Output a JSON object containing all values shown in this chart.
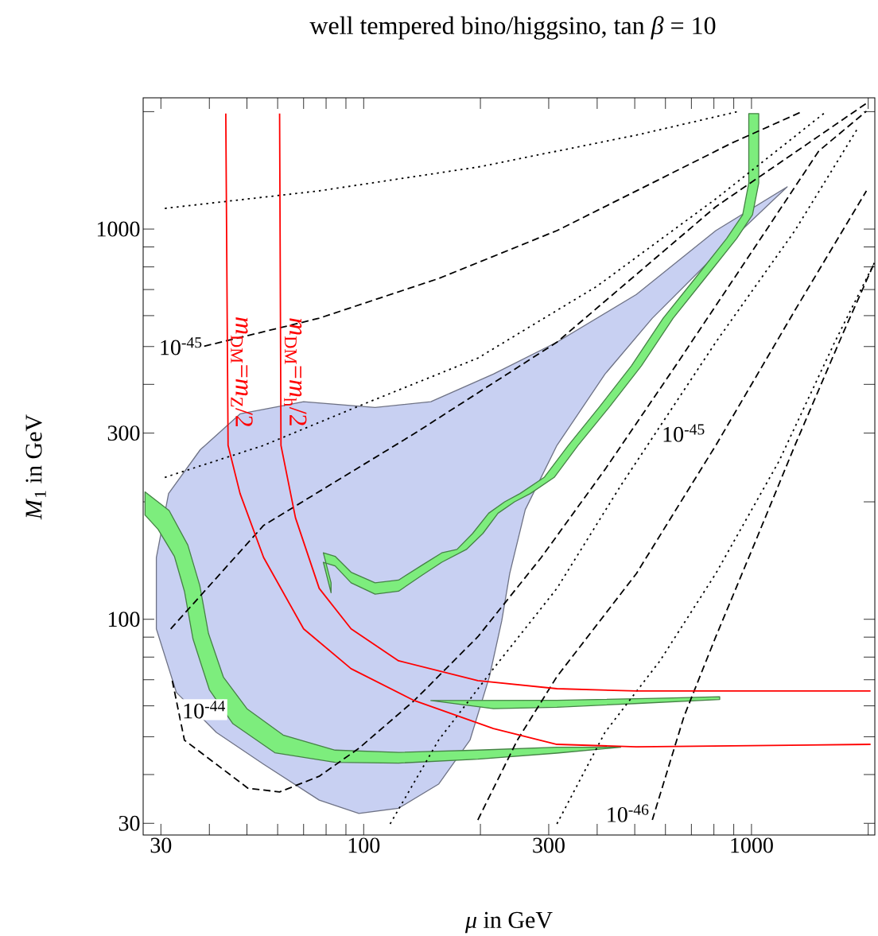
{
  "chart_data": {
    "type": "line",
    "title": "well tempered bino/higgsino, tan *β* = 10",
    "xlabel": "*μ* in GeV",
    "ylabel": "*M*$_{1}$ in GeV",
    "log": "xy",
    "xlim": [
      27,
      2080
    ],
    "ylim": [
      28,
      2170
    ],
    "xticks": [
      30,
      {
        "value": 40,
        "label": null
      },
      {
        "value": 50,
        "label": null
      },
      {
        "value": 60,
        "label": null
      },
      {
        "value": 70,
        "label": null
      },
      {
        "value": 80,
        "label": null
      },
      {
        "value": 90,
        "label": null
      },
      100,
      {
        "value": 200,
        "label": null
      },
      300,
      {
        "value": 400,
        "label": null
      },
      {
        "value": 500,
        "label": null
      },
      {
        "value": 600,
        "label": null
      },
      {
        "value": 700,
        "label": null
      },
      {
        "value": 800,
        "label": null
      },
      {
        "value": 900,
        "label": null
      },
      1000,
      {
        "value": 2000,
        "label": null
      }
    ],
    "yticks": [
      30,
      {
        "value": 40,
        "label": null
      },
      {
        "value": 50,
        "label": null
      },
      {
        "value": 60,
        "label": null
      },
      {
        "value": 70,
        "label": null
      },
      {
        "value": 80,
        "label": null
      },
      {
        "value": 90,
        "label": null
      },
      100,
      {
        "value": 200,
        "label": null
      },
      300,
      {
        "value": 400,
        "label": null
      },
      {
        "value": 500,
        "label": null
      },
      {
        "value": 600,
        "label": null
      },
      {
        "value": 700,
        "label": null
      },
      {
        "value": 800,
        "label": null
      },
      {
        "value": 900,
        "label": null
      },
      1000,
      {
        "value": 2000,
        "label": null
      }
    ],
    "series": [
      {
        "type": "area",
        "color": "#c8d0f2",
        "x": [
          1236,
          809,
          555,
          419,
          315,
          261,
          238,
          227,
          211,
          188,
          156,
          123,
          97.2,
          76.8,
          55.2,
          41.7,
          32.9,
          29.2,
          29.2,
          31.4,
          37.9,
          48.0,
          70.0,
          107,
          149,
          216,
          315,
          505,
          809
        ],
        "values": [
          1283,
          860,
          591,
          425,
          279,
          191,
          131,
          99.1,
          71.3,
          49.0,
          37.8,
          32.8,
          31.8,
          34.4,
          42.5,
          51.3,
          64.9,
          94.5,
          144,
          210,
          272,
          336,
          361,
          349,
          361,
          425,
          513,
          680,
          991
        ]
      },
      {
        "type": "area",
        "color": "#7ded7d",
        "x": [
          1044,
          1044,
          1006,
          916,
          758,
          628,
          520,
          432,
          357,
          310,
          269,
          245,
          222,
          203,
          184,
          159,
          142,
          123,
          107,
          92.8,
          84.4,
          78.7,
          82.4,
          82.4,
          78.7,
          84.4,
          92.8,
          107,
          123,
          142,
          159,
          174,
          191,
          210,
          231,
          253,
          292,
          337,
          407,
          490,
          592,
          715,
          863,
          949,
          984,
          984
        ],
        "values": [
          1977,
          1313,
          1088,
          946,
          747,
          591,
          446,
          352,
          279,
          231,
          210,
          200,
          187,
          166,
          151,
          140,
          130,
          118,
          116,
          124,
          137,
          140,
          117,
          124,
          148,
          145,
          132,
          124,
          126,
          138,
          148,
          151,
          166,
          187,
          200,
          210,
          231,
          279,
          352,
          446,
          591,
          747,
          946,
          1088,
          1313,
          1977
        ]
      },
      {
        "type": "area",
        "color": "#7ded7d",
        "x": [
          27.3,
          29.5,
          32.5,
          34.5,
          36.3,
          40,
          46,
          59,
          84.4,
          123,
          197,
          315,
          460,
          315,
          197,
          123,
          84.4,
          62,
          50,
          43.5,
          39.8,
          37.8,
          35.2,
          31.5,
          27.3
        ],
        "values": [
          185,
          170,
          145,
          118,
          89,
          66,
          54,
          45.5,
          43.0,
          42.8,
          43.8,
          45.4,
          47.0,
          47.0,
          46.2,
          45.6,
          46.2,
          50.5,
          59,
          71,
          92,
          122,
          155,
          190,
          212
        ]
      },
      {
        "type": "area",
        "color": "#7ded7d",
        "x": [
          828,
          600,
          315,
          149,
          216,
          315,
          500,
          828
        ],
        "values": [
          63.3,
          62.8,
          62.0,
          61.9,
          59.0,
          59.5,
          60.8,
          62.3
        ]
      },
      {
        "color": "#000000",
        "line_style": "dashed",
        "x": [
          38.8,
          76.8,
          156,
          315,
          555,
          889,
          1357
        ],
        "values": [
          501,
          591,
          747,
          991,
          1313,
          1661,
          2005
        ]
      },
      {
        "color": "#000000",
        "line_style": "dashed",
        "x": [
          31.8,
          55.2,
          135,
          315,
          809,
          1979
        ],
        "values": [
          94.5,
          174,
          299,
          513,
          1141,
          2100
        ]
      },
      {
        "color": "#000000",
        "line_style": "dashed",
        "x": [
          32.1,
          34.5,
          41.7,
          50.3,
          60.7,
          76.8,
          97.2,
          135,
          197,
          287,
          419,
          637,
          1023,
          1491,
          1979
        ],
        "values": [
          69.6,
          49.0,
          42.5,
          36.9,
          36.1,
          39.6,
          46.7,
          61.9,
          90.2,
          144,
          242,
          446,
          902,
          1585,
          2005
        ]
      },
      {
        "color": "#000000",
        "line_style": "dashed",
        "x": [
          197,
          249,
          315,
          505,
          809,
          1294,
          1979
        ],
        "values": [
          30.6,
          49.0,
          71.3,
          131,
          279,
          619,
          1253
        ]
      },
      {
        "color": "#000000",
        "line_style": "dashed",
        "x": [
          555,
          670,
          809,
          1023,
          1294,
          1718,
          2075
        ],
        "values": [
          30.6,
          56.4,
          90.2,
          158,
          279,
          538,
          820
        ]
      },
      {
        "color": "#000000",
        "line_style": "dotted",
        "x": [
          30.7,
          76.8,
          197,
          505,
          932
        ],
        "values": [
          1130,
          1253,
          1442,
          1741,
          2005
        ]
      },
      {
        "color": "#000000",
        "line_style": "dotted",
        "x": [
          30.7,
          55.2,
          97.2,
          197,
          399,
          809,
          1563
        ],
        "values": [
          231,
          279,
          352,
          467,
          713,
          1195,
          2005
        ]
      },
      {
        "color": "#000000",
        "line_style": "dotted",
        "x": [
          117,
          156,
          216,
          315,
          460,
          809,
          1294,
          1887
        ],
        "values": [
          29.9,
          49.0,
          74.7,
          120,
          220,
          513,
          991,
          1825
        ]
      },
      {
        "color": "#000000",
        "line_style": "dotted",
        "x": [
          315,
          419,
          581,
          809,
          1177,
          1639,
          2075
        ],
        "values": [
          29.9,
          51.3,
          78.3,
          131,
          254,
          513,
          820
        ]
      },
      {
        "color": "#ff0000",
        "line_style": "solid",
        "x": [
          44.1,
          44.7,
          48.0,
          55.2,
          70.0,
          92.8,
          135,
          216,
          315,
          505,
          2028
        ],
        "values": [
          1977,
          279,
          210,
          144,
          94.5,
          74.7,
          61.9,
          52.5,
          47.8,
          47.1,
          47.8
        ]
      },
      {
        "color": "#ff0000",
        "line_style": "solid",
        "x": [
          60.7,
          61.2,
          66.7,
          76.8,
          92.8,
          123,
          197,
          315,
          505,
          2028
        ],
        "values": [
          1977,
          279,
          182,
          120,
          94.5,
          78.3,
          69.6,
          66.4,
          65.5,
          65.5
        ]
      }
    ],
    "annotations": [
      {
        "text": "10$^{-45}$",
        "x": 38.8,
        "y": 501
      },
      {
        "text": "10$^{-45}$",
        "x": 581,
        "y": 300
      },
      {
        "text": "10$^{-44}$",
        "x": 33.7,
        "y": 55.1
      },
      "10$^{-46}$",
      {
        "text": "*m*$_{DM}$=*m*$_{Z}$/2",
        "x": 44.4,
        "y": 430
      },
      {
        "text": "*m*$_{DM}$=*m*$_{h}$/2",
        "x": 60.9,
        "y": 430
      }
    ]
  }
}
